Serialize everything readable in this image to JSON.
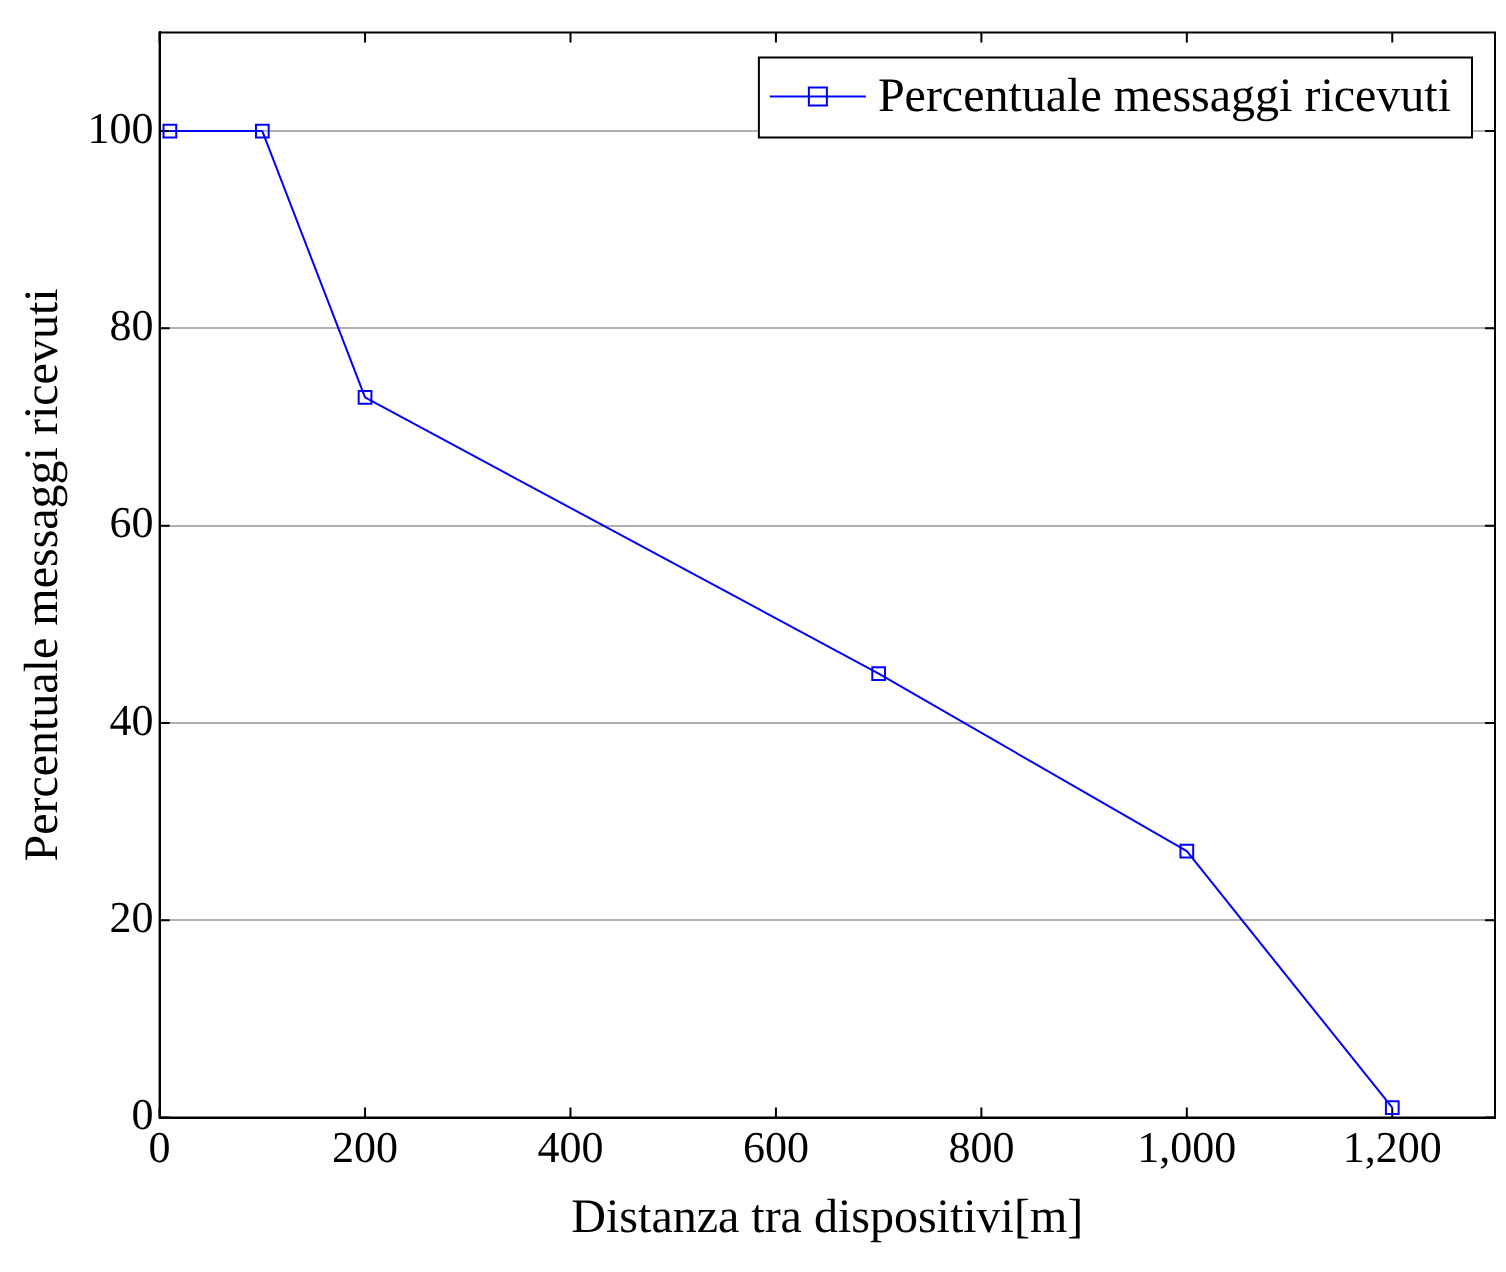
{
  "chart_data": {
    "type": "line",
    "xlabel": "Distanza tra dispositivi[m]",
    "ylabel": "Percentuale messaggi ricevuti",
    "x": [
      10,
      100,
      200,
      700,
      1000,
      1200
    ],
    "series": [
      {
        "name": "Percentuale messaggi ricevuti",
        "color": "#0000ff",
        "values": [
          100,
          100,
          73,
          45,
          27,
          1
        ]
      }
    ],
    "xlim": [
      0,
      1300
    ],
    "ylim": [
      0,
      110
    ],
    "xticks": [
      0,
      200,
      400,
      600,
      800,
      {
        "value": 1000,
        "label": "1,000"
      },
      {
        "value": 1200,
        "label": "1,200"
      }
    ],
    "yticks": [
      0,
      20,
      40,
      60,
      80,
      100
    ],
    "grid": "y",
    "legend": "top right",
    "marker": "square",
    "line_style": "solid"
  }
}
